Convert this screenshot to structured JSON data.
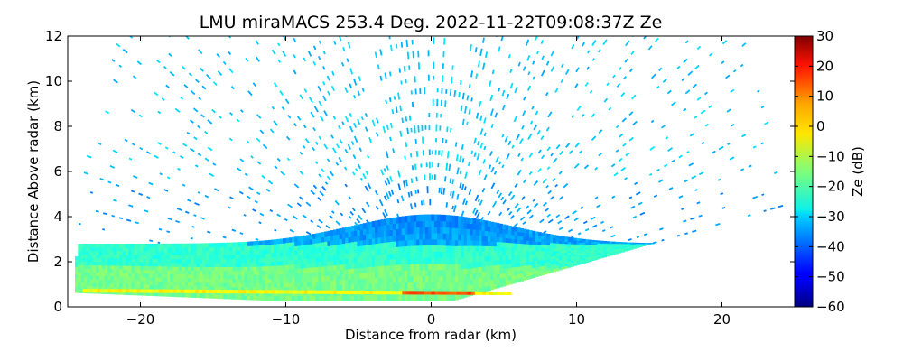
{
  "chart_data": {
    "type": "heatmap",
    "title": "LMU miraMACS 253.4 Deg. 2022-11-22T09:08:37Z  Ze",
    "xlabel": "Distance from radar (km)",
    "ylabel": "Distance Above radar  (km)",
    "xlim": [
      -25,
      25
    ],
    "ylim": [
      0,
      12
    ],
    "x_ticks": [
      -20,
      -10,
      0,
      10,
      20
    ],
    "x_tick_labels": [
      "−20",
      "−10",
      "0",
      "10",
      "20"
    ],
    "y_ticks": [
      0,
      2,
      4,
      6,
      8,
      10,
      12
    ],
    "y_tick_labels": [
      "0",
      "2",
      "4",
      "6",
      "8",
      "10",
      "12"
    ],
    "colorbar": {
      "label": "Ze (dB)",
      "range": [
        -60,
        30
      ],
      "ticks": [
        -60,
        -50,
        -40,
        -30,
        -20,
        -10,
        0,
        10,
        20,
        30
      ],
      "tick_labels": [
        "−60",
        "−50",
        "−40",
        "−30",
        "−20",
        "−10",
        "0",
        "10",
        "20",
        "30"
      ],
      "colormap": "jet"
    },
    "scan": {
      "kind": "RHI",
      "radar_position_km": [
        0,
        0
      ],
      "max_range_km": 24.5,
      "min_elevation_left_deg": 1.5,
      "min_elevation_right_deg": 10.5
    },
    "layers": [
      {
        "description_value_db": -18,
        "height_km": [
          0.3,
          2.8
        ]
      },
      {
        "description_value_db": -3,
        "height_km": [
          0.45,
          0.7
        ]
      },
      {
        "description_value_db": 8,
        "height_km": [
          0.5,
          0.6
        ]
      },
      {
        "description_value_db": -32,
        "height_km": [
          2.8,
          4.2
        ]
      },
      {
        "description_value_db": -28,
        "height_km": [
          4.2,
          12
        ]
      }
    ]
  }
}
